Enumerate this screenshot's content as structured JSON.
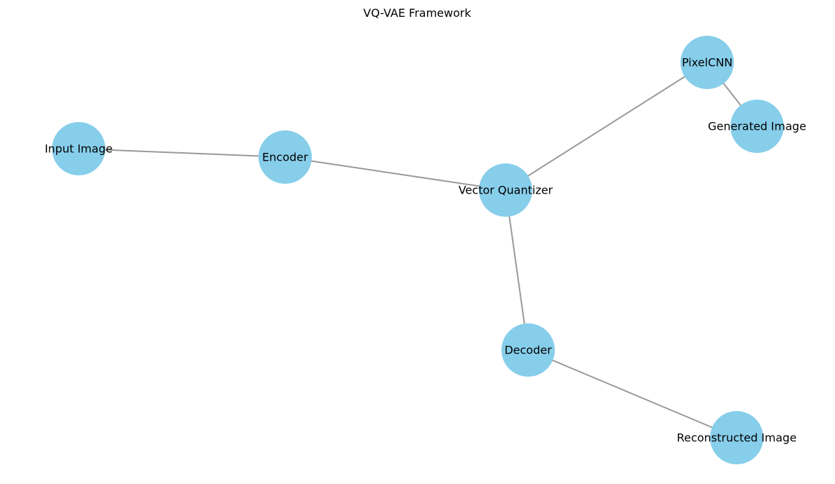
{
  "title": "VQ-VAE Framework",
  "colors": {
    "node_fill": "#87ceeb",
    "edge": "#999999",
    "text": "#000000",
    "background": "#ffffff"
  },
  "nodes": [
    {
      "id": "input-image",
      "label": "Input Image"
    },
    {
      "id": "encoder",
      "label": "Encoder"
    },
    {
      "id": "vector-quantizer",
      "label": "Vector Quantizer"
    },
    {
      "id": "pixelcnn",
      "label": "PixelCNN"
    },
    {
      "id": "generated-image",
      "label": "Generated Image"
    },
    {
      "id": "decoder",
      "label": "Decoder"
    },
    {
      "id": "reconstructed-image",
      "label": "Reconstructed Image"
    }
  ],
  "edges": [
    {
      "from": "input-image",
      "to": "encoder"
    },
    {
      "from": "encoder",
      "to": "vector-quantizer"
    },
    {
      "from": "vector-quantizer",
      "to": "pixelcnn"
    },
    {
      "from": "pixelcnn",
      "to": "generated-image"
    },
    {
      "from": "vector-quantizer",
      "to": "decoder"
    },
    {
      "from": "decoder",
      "to": "reconstructed-image"
    }
  ]
}
